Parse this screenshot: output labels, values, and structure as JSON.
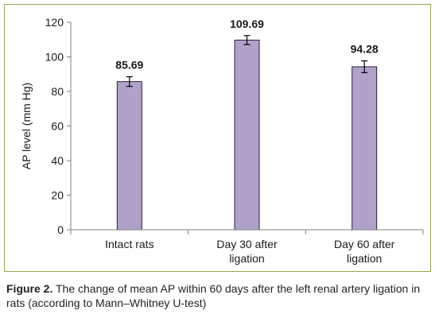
{
  "chart_data": {
    "type": "bar",
    "categories": [
      [
        "Intact rats"
      ],
      [
        "Day 30 after",
        "ligation"
      ],
      [
        "Day 60 after",
        "ligation"
      ]
    ],
    "values": [
      85.69,
      109.69,
      94.28
    ],
    "errors": [
      2.8,
      2.6,
      3.4
    ],
    "data_labels": [
      "85.69",
      "109.69",
      "94.28"
    ],
    "ylabel": "AP level (mm Hg)",
    "ylim": [
      0,
      120
    ],
    "yticks": [
      0,
      20,
      40,
      60,
      80,
      100,
      120
    ],
    "grid": false,
    "legend": "none",
    "colors": {
      "bar_fill": "#b0a1cb",
      "bar_stroke": "#2b2433",
      "axis": "#808080",
      "frame": "#9aa64e",
      "text": "#1a1a1a"
    }
  },
  "caption": {
    "label": "Figure 2.",
    "text": " The change of mean AP within 60 days after the left renal artery ligation in rats (according to Mann–Whitney U-test)"
  }
}
